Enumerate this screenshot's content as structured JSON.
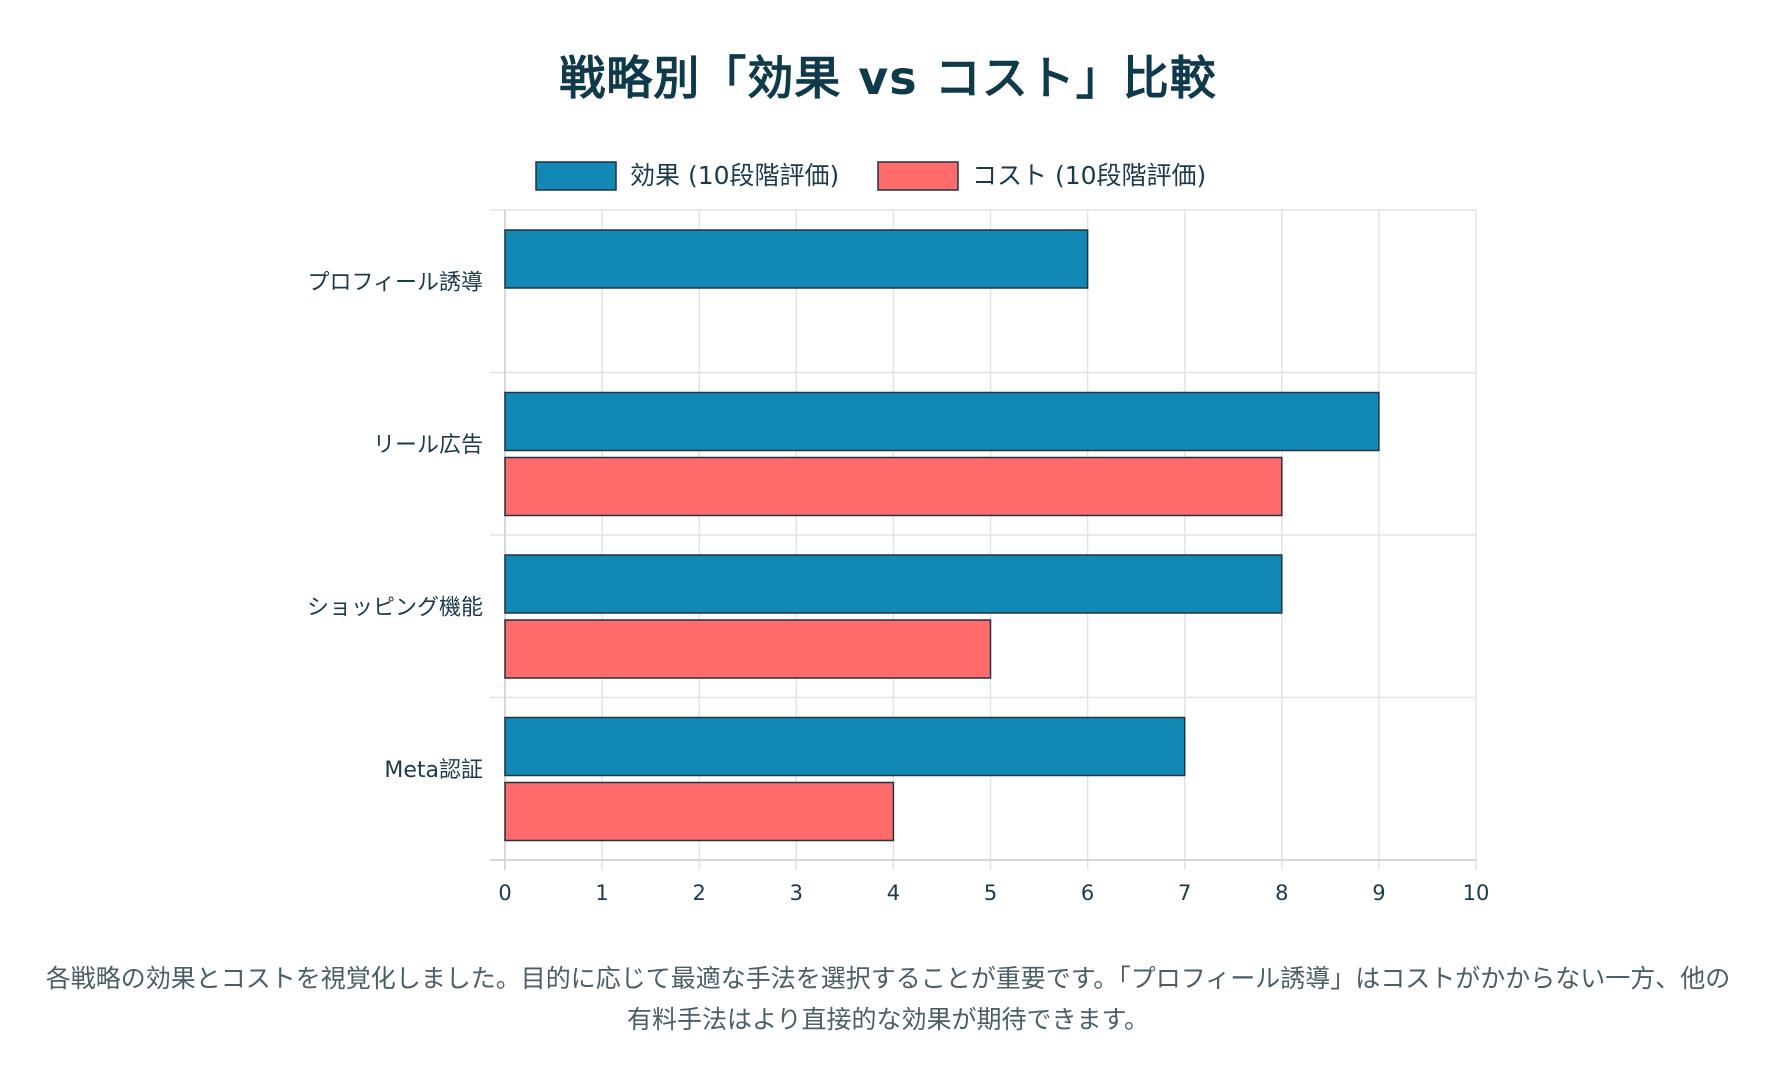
{
  "chart_data": {
    "type": "bar",
    "orientation": "horizontal",
    "title": "戦略別「効果 vs コスト」比較",
    "categories": [
      "プロフィール誘導",
      "リール広告",
      "ショッピング機能",
      "Meta認証"
    ],
    "series": [
      {
        "name": "効果 (10段階評価)",
        "values": [
          6,
          9,
          8,
          7
        ],
        "color": "#1289b5"
      },
      {
        "name": "コスト (10段階評価)",
        "values": [
          0,
          8,
          5,
          4
        ],
        "color": "#ff6b6b"
      }
    ],
    "xlim": [
      0,
      10
    ],
    "xticks": [
      0,
      1,
      2,
      3,
      4,
      5,
      6,
      7,
      8,
      9,
      10
    ],
    "grid": true,
    "legend_position": "top"
  },
  "caption": "各戦略の効果とコストを視覚化しました。目的に応じて最適な手法を選択することが重要です。「プロフィール誘導」はコストがかからない一方、他の有料手法はより直接的な効果が期待できます。"
}
